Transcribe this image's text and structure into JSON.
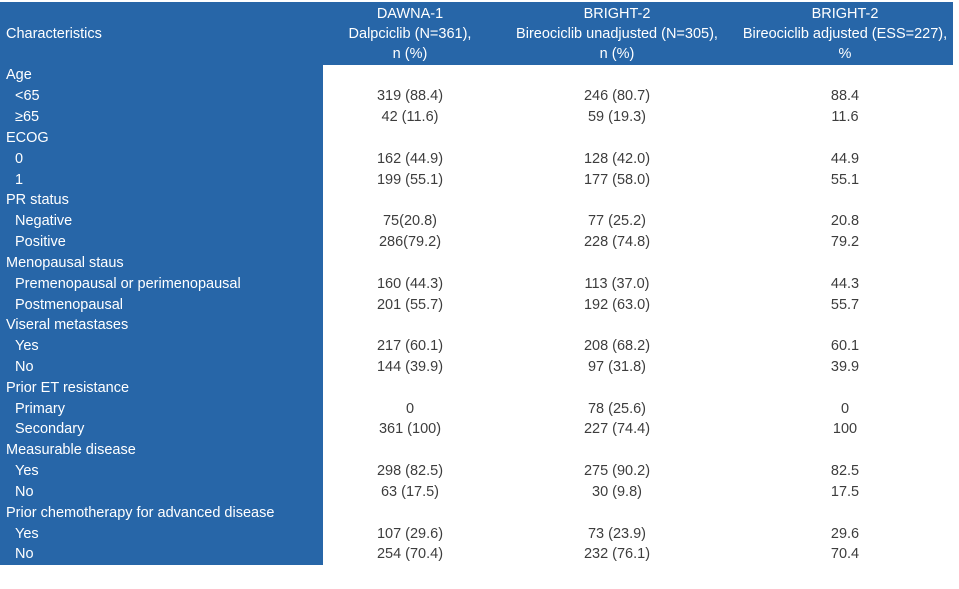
{
  "colors": {
    "header_blue": "#2766A8",
    "header_text": "#FFFFFF",
    "data_text": "#3D3D3D",
    "page_background": "#FFFFFF"
  },
  "table": {
    "corner_label": "Characteristics",
    "columns": [
      {
        "study": "DAWNA-1",
        "arm": "Dalpciclib (N=361),",
        "unit": "n (%)"
      },
      {
        "study": "BRIGHT-2",
        "arm": "Bireociclib unadjusted (N=305),",
        "unit": "n (%)"
      },
      {
        "study": "BRIGHT-2",
        "arm": "Bireociclib adjusted (ESS=227),",
        "unit": "%"
      }
    ],
    "rows": [
      {
        "label": "Age",
        "indent": false,
        "values": [
          "",
          "",
          ""
        ]
      },
      {
        "label": "<65",
        "indent": true,
        "values": [
          "319 (88.4)",
          "246 (80.7)",
          "88.4"
        ]
      },
      {
        "label": "≥65",
        "indent": true,
        "values": [
          "42 (11.6)",
          "59 (19.3)",
          "11.6"
        ]
      },
      {
        "label": "ECOG",
        "indent": false,
        "values": [
          "",
          "",
          ""
        ]
      },
      {
        "label": "0",
        "indent": true,
        "values": [
          "162 (44.9)",
          "128 (42.0)",
          "44.9"
        ]
      },
      {
        "label": "1",
        "indent": true,
        "values": [
          "199 (55.1)",
          "177 (58.0)",
          "55.1"
        ]
      },
      {
        "label": "PR status",
        "indent": false,
        "values": [
          "",
          "",
          ""
        ]
      },
      {
        "label": "Negative",
        "indent": true,
        "values": [
          "75(20.8)",
          "77 (25.2)",
          "20.8"
        ]
      },
      {
        "label": "Positive",
        "indent": true,
        "values": [
          "286(79.2)",
          "228 (74.8)",
          "79.2"
        ]
      },
      {
        "label": "Menopausal staus",
        "indent": false,
        "values": [
          "",
          "",
          ""
        ]
      },
      {
        "label": "Premenopausal or perimenopausal",
        "indent": true,
        "values": [
          "160 (44.3)",
          "113 (37.0)",
          "44.3"
        ]
      },
      {
        "label": "Postmenopausal",
        "indent": true,
        "values": [
          "201 (55.7)",
          "192 (63.0)",
          "55.7"
        ]
      },
      {
        "label": "Viseral metastases",
        "indent": false,
        "values": [
          "",
          "",
          ""
        ]
      },
      {
        "label": "Yes",
        "indent": true,
        "values": [
          "217 (60.1)",
          "208 (68.2)",
          "60.1"
        ]
      },
      {
        "label": "No",
        "indent": true,
        "values": [
          "144 (39.9)",
          "97 (31.8)",
          "39.9"
        ]
      },
      {
        "label": "Prior ET resistance",
        "indent": false,
        "values": [
          "",
          "",
          ""
        ]
      },
      {
        "label": "Primary",
        "indent": true,
        "values": [
          "0",
          "78 (25.6)",
          "0"
        ]
      },
      {
        "label": "Secondary",
        "indent": true,
        "values": [
          "361 (100)",
          "227 (74.4)",
          "100"
        ]
      },
      {
        "label": "Measurable disease",
        "indent": false,
        "values": [
          "",
          "",
          ""
        ]
      },
      {
        "label": "Yes",
        "indent": true,
        "values": [
          "298 (82.5)",
          "275 (90.2)",
          "82.5"
        ]
      },
      {
        "label": "No",
        "indent": true,
        "values": [
          "63 (17.5)",
          "30 (9.8)",
          "17.5"
        ]
      },
      {
        "label": "Prior chemotherapy for advanced disease",
        "indent": false,
        "values": [
          "",
          "",
          ""
        ]
      },
      {
        "label": "Yes",
        "indent": true,
        "values": [
          "107 (29.6)",
          "73 (23.9)",
          "29.6"
        ]
      },
      {
        "label": "No",
        "indent": true,
        "values": [
          "254 (70.4)",
          "232 (76.1)",
          "70.4"
        ]
      }
    ]
  }
}
